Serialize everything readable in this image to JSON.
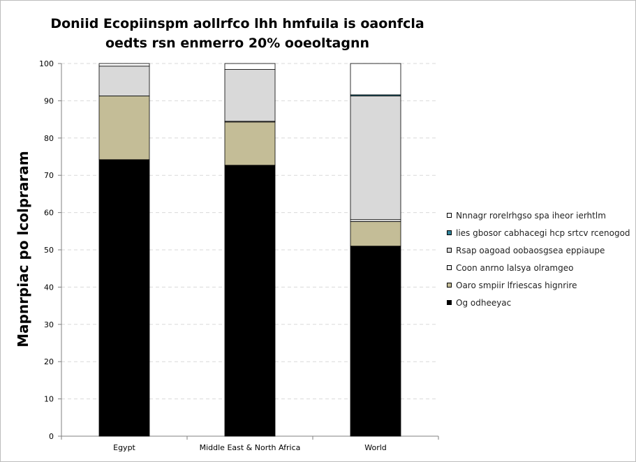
{
  "chart_data": {
    "type": "bar",
    "stacked": true,
    "title_lines": [
      "Doniid Ecopiinspm aollrfco  lhh hmfuila is oaonfcla",
      "oedts rsn enmerro 20% ooeoltagnn"
    ],
    "xlabel": "",
    "ylabel": "Mapnrpiac po lcolpraram",
    "ylim": [
      0,
      100
    ],
    "yticks": [
      "0",
      "10",
      "20",
      "30",
      "40",
      "50",
      "60",
      "70",
      "80",
      "90",
      "100"
    ],
    "categories": [
      "Egypt",
      "Middle East & North Africa",
      "World"
    ],
    "series": [
      {
        "name": "Og odheeyac",
        "color": "#000000",
        "values": [
          74.2,
          72.7,
          51.0
        ]
      },
      {
        "name": "Oaro smpiir lfriescas hignrire",
        "color": "#c4bd97",
        "values": [
          17.1,
          11.6,
          6.6
        ]
      },
      {
        "name": "Coon anrno lalsya olramgeo",
        "color": "#f2f2f2",
        "values": [
          0.0,
          0.2,
          0.5
        ]
      },
      {
        "name": "Rsap oagoad oobaosgsea eppiaupe",
        "color": "#d9d9d9",
        "values": [
          8.0,
          13.9,
          33.2
        ]
      },
      {
        "name": "lies gbosor cabhacegi hcp srtcv rcenogod",
        "color": "#31849b",
        "values": [
          0.0,
          0.0,
          0.3
        ]
      },
      {
        "name": "Nnnagr rorelrhgso spa iheor ierhtlm",
        "color": "#ffffff",
        "values": [
          0.7,
          1.6,
          8.4
        ]
      }
    ],
    "grid": true,
    "legend_position": "right"
  }
}
